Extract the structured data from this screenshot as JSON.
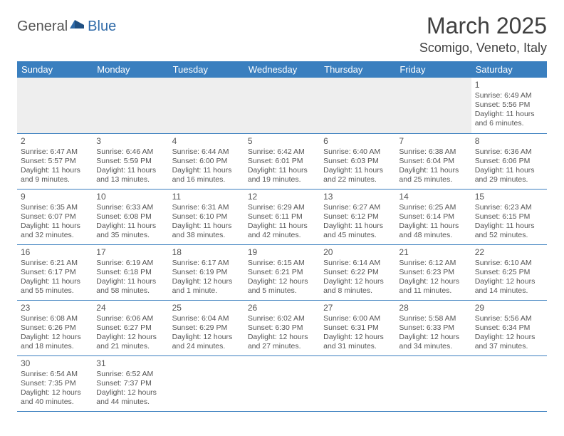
{
  "logo": {
    "part1": "General",
    "part2": "Blue"
  },
  "title": "March 2025",
  "location": "Scomigo, Veneto, Italy",
  "colors": {
    "header_bg": "#3a7fbf",
    "header_text": "#ffffff",
    "border": "#3a7fbf",
    "text": "#555555",
    "empty_bg": "#eeeeee",
    "logo_blue": "#2f6aa8"
  },
  "day_headers": [
    "Sunday",
    "Monday",
    "Tuesday",
    "Wednesday",
    "Thursday",
    "Friday",
    "Saturday"
  ],
  "weeks": [
    [
      null,
      null,
      null,
      null,
      null,
      null,
      {
        "n": "1",
        "sr": "6:49 AM",
        "ss": "5:56 PM",
        "dl": "11 hours and 6 minutes."
      }
    ],
    [
      {
        "n": "2",
        "sr": "6:47 AM",
        "ss": "5:57 PM",
        "dl": "11 hours and 9 minutes."
      },
      {
        "n": "3",
        "sr": "6:46 AM",
        "ss": "5:59 PM",
        "dl": "11 hours and 13 minutes."
      },
      {
        "n": "4",
        "sr": "6:44 AM",
        "ss": "6:00 PM",
        "dl": "11 hours and 16 minutes."
      },
      {
        "n": "5",
        "sr": "6:42 AM",
        "ss": "6:01 PM",
        "dl": "11 hours and 19 minutes."
      },
      {
        "n": "6",
        "sr": "6:40 AM",
        "ss": "6:03 PM",
        "dl": "11 hours and 22 minutes."
      },
      {
        "n": "7",
        "sr": "6:38 AM",
        "ss": "6:04 PM",
        "dl": "11 hours and 25 minutes."
      },
      {
        "n": "8",
        "sr": "6:36 AM",
        "ss": "6:06 PM",
        "dl": "11 hours and 29 minutes."
      }
    ],
    [
      {
        "n": "9",
        "sr": "6:35 AM",
        "ss": "6:07 PM",
        "dl": "11 hours and 32 minutes."
      },
      {
        "n": "10",
        "sr": "6:33 AM",
        "ss": "6:08 PM",
        "dl": "11 hours and 35 minutes."
      },
      {
        "n": "11",
        "sr": "6:31 AM",
        "ss": "6:10 PM",
        "dl": "11 hours and 38 minutes."
      },
      {
        "n": "12",
        "sr": "6:29 AM",
        "ss": "6:11 PM",
        "dl": "11 hours and 42 minutes."
      },
      {
        "n": "13",
        "sr": "6:27 AM",
        "ss": "6:12 PM",
        "dl": "11 hours and 45 minutes."
      },
      {
        "n": "14",
        "sr": "6:25 AM",
        "ss": "6:14 PM",
        "dl": "11 hours and 48 minutes."
      },
      {
        "n": "15",
        "sr": "6:23 AM",
        "ss": "6:15 PM",
        "dl": "11 hours and 52 minutes."
      }
    ],
    [
      {
        "n": "16",
        "sr": "6:21 AM",
        "ss": "6:17 PM",
        "dl": "11 hours and 55 minutes."
      },
      {
        "n": "17",
        "sr": "6:19 AM",
        "ss": "6:18 PM",
        "dl": "11 hours and 58 minutes."
      },
      {
        "n": "18",
        "sr": "6:17 AM",
        "ss": "6:19 PM",
        "dl": "12 hours and 1 minute."
      },
      {
        "n": "19",
        "sr": "6:15 AM",
        "ss": "6:21 PM",
        "dl": "12 hours and 5 minutes."
      },
      {
        "n": "20",
        "sr": "6:14 AM",
        "ss": "6:22 PM",
        "dl": "12 hours and 8 minutes."
      },
      {
        "n": "21",
        "sr": "6:12 AM",
        "ss": "6:23 PM",
        "dl": "12 hours and 11 minutes."
      },
      {
        "n": "22",
        "sr": "6:10 AM",
        "ss": "6:25 PM",
        "dl": "12 hours and 14 minutes."
      }
    ],
    [
      {
        "n": "23",
        "sr": "6:08 AM",
        "ss": "6:26 PM",
        "dl": "12 hours and 18 minutes."
      },
      {
        "n": "24",
        "sr": "6:06 AM",
        "ss": "6:27 PM",
        "dl": "12 hours and 21 minutes."
      },
      {
        "n": "25",
        "sr": "6:04 AM",
        "ss": "6:29 PM",
        "dl": "12 hours and 24 minutes."
      },
      {
        "n": "26",
        "sr": "6:02 AM",
        "ss": "6:30 PM",
        "dl": "12 hours and 27 minutes."
      },
      {
        "n": "27",
        "sr": "6:00 AM",
        "ss": "6:31 PM",
        "dl": "12 hours and 31 minutes."
      },
      {
        "n": "28",
        "sr": "5:58 AM",
        "ss": "6:33 PM",
        "dl": "12 hours and 34 minutes."
      },
      {
        "n": "29",
        "sr": "5:56 AM",
        "ss": "6:34 PM",
        "dl": "12 hours and 37 minutes."
      }
    ],
    [
      {
        "n": "30",
        "sr": "6:54 AM",
        "ss": "7:35 PM",
        "dl": "12 hours and 40 minutes."
      },
      {
        "n": "31",
        "sr": "6:52 AM",
        "ss": "7:37 PM",
        "dl": "12 hours and 44 minutes."
      },
      null,
      null,
      null,
      null,
      null
    ]
  ],
  "labels": {
    "sunrise": "Sunrise:",
    "sunset": "Sunset:",
    "daylight": "Daylight:"
  }
}
